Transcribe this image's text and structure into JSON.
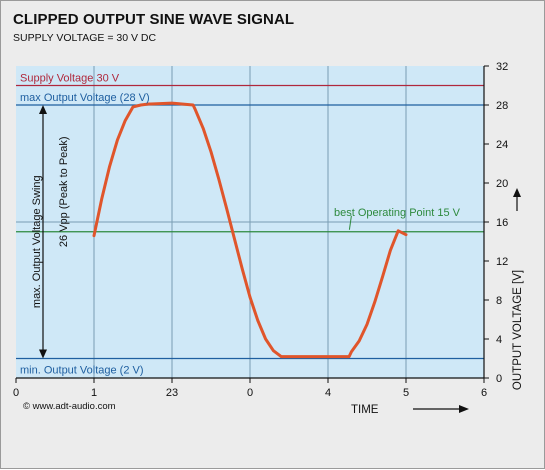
{
  "chart_data": {
    "type": "line",
    "title": "CLIPPED OUTPUT SINE WAVE SIGNAL",
    "subtitle": "SUPPLY VOLTAGE = 30 V DC",
    "xlabel": "TIME",
    "ylabel": "OUTPUT VOLTAGE  [V]",
    "xlim": [
      0,
      6
    ],
    "ylim": [
      0,
      32
    ],
    "x_ticks": [
      0,
      1,
      2,
      3,
      4,
      5,
      6
    ],
    "x_tick_labels": [
      "0",
      "1",
      "23",
      "",
      "4",
      "5",
      "6"
    ],
    "extra_x_labels": [
      {
        "x": 3,
        "label": "0"
      }
    ],
    "y_ticks": [
      0,
      4,
      8,
      12,
      16,
      20,
      24,
      28,
      32
    ],
    "y_tick_labels": [
      "0",
      "4",
      "8",
      "12",
      "16",
      "20",
      "24",
      "28",
      "32"
    ],
    "grid": {
      "x": [
        1,
        2,
        3,
        4,
        5
      ],
      "y": [
        16
      ],
      "color": "#7a9db3"
    },
    "background": "#cfe8f7",
    "series": [
      {
        "color": "#e0552b",
        "x": [
          1.0,
          1.1,
          1.2,
          1.3,
          1.4,
          1.5,
          1.6,
          1.7,
          1.73,
          2.0,
          2.27,
          2.3,
          2.4,
          2.5,
          2.6,
          2.7,
          2.8,
          2.9,
          3.0,
          3.1,
          3.2,
          3.3,
          3.4,
          3.5,
          3.6,
          3.7,
          3.73,
          4.0,
          4.27,
          4.3,
          4.4,
          4.5,
          4.6,
          4.7,
          4.8,
          4.9,
          5.0
        ],
        "y": [
          14.6,
          18.4,
          21.7,
          24.4,
          26.4,
          27.8,
          28.0,
          28.1,
          28.1,
          28.2,
          28.0,
          27.5,
          25.6,
          23.2,
          20.4,
          17.4,
          14.3,
          11.2,
          8.3,
          5.9,
          4.0,
          2.8,
          2.2,
          2.2,
          2.2,
          2.2,
          2.2,
          2.2,
          2.2,
          2.7,
          3.8,
          5.5,
          7.8,
          10.4,
          13.1,
          15.1,
          14.7
        ]
      }
    ],
    "reference_lines": [
      {
        "y": 30,
        "label": "Supply Voltage 30 V",
        "color": "#b0283c",
        "label_color": "#b0283c"
      },
      {
        "y": 28,
        "label": "max Output Voltage (28 V)",
        "color": "#1f5fa0",
        "label_color": "#1f5fa0"
      },
      {
        "y": 15,
        "label": "best Operating Point 15 V",
        "color": "#2e8a3e",
        "label_color": "#2e8a3e"
      },
      {
        "y": 2,
        "label": "min. Output Voltage (2 V)",
        "color": "#1f5fa0",
        "label_color": "#1f5fa0"
      }
    ],
    "swing_annotation": {
      "from": 2,
      "to": 28,
      "line1": "max. Output Voltage Swing",
      "line2": "26 Vpp (Peak to Peak)"
    },
    "copyright": "© www.adt-audio.com",
    "colors": {
      "frame": "#ececec",
      "axis": "#111111",
      "curve": "#e0552b"
    }
  }
}
